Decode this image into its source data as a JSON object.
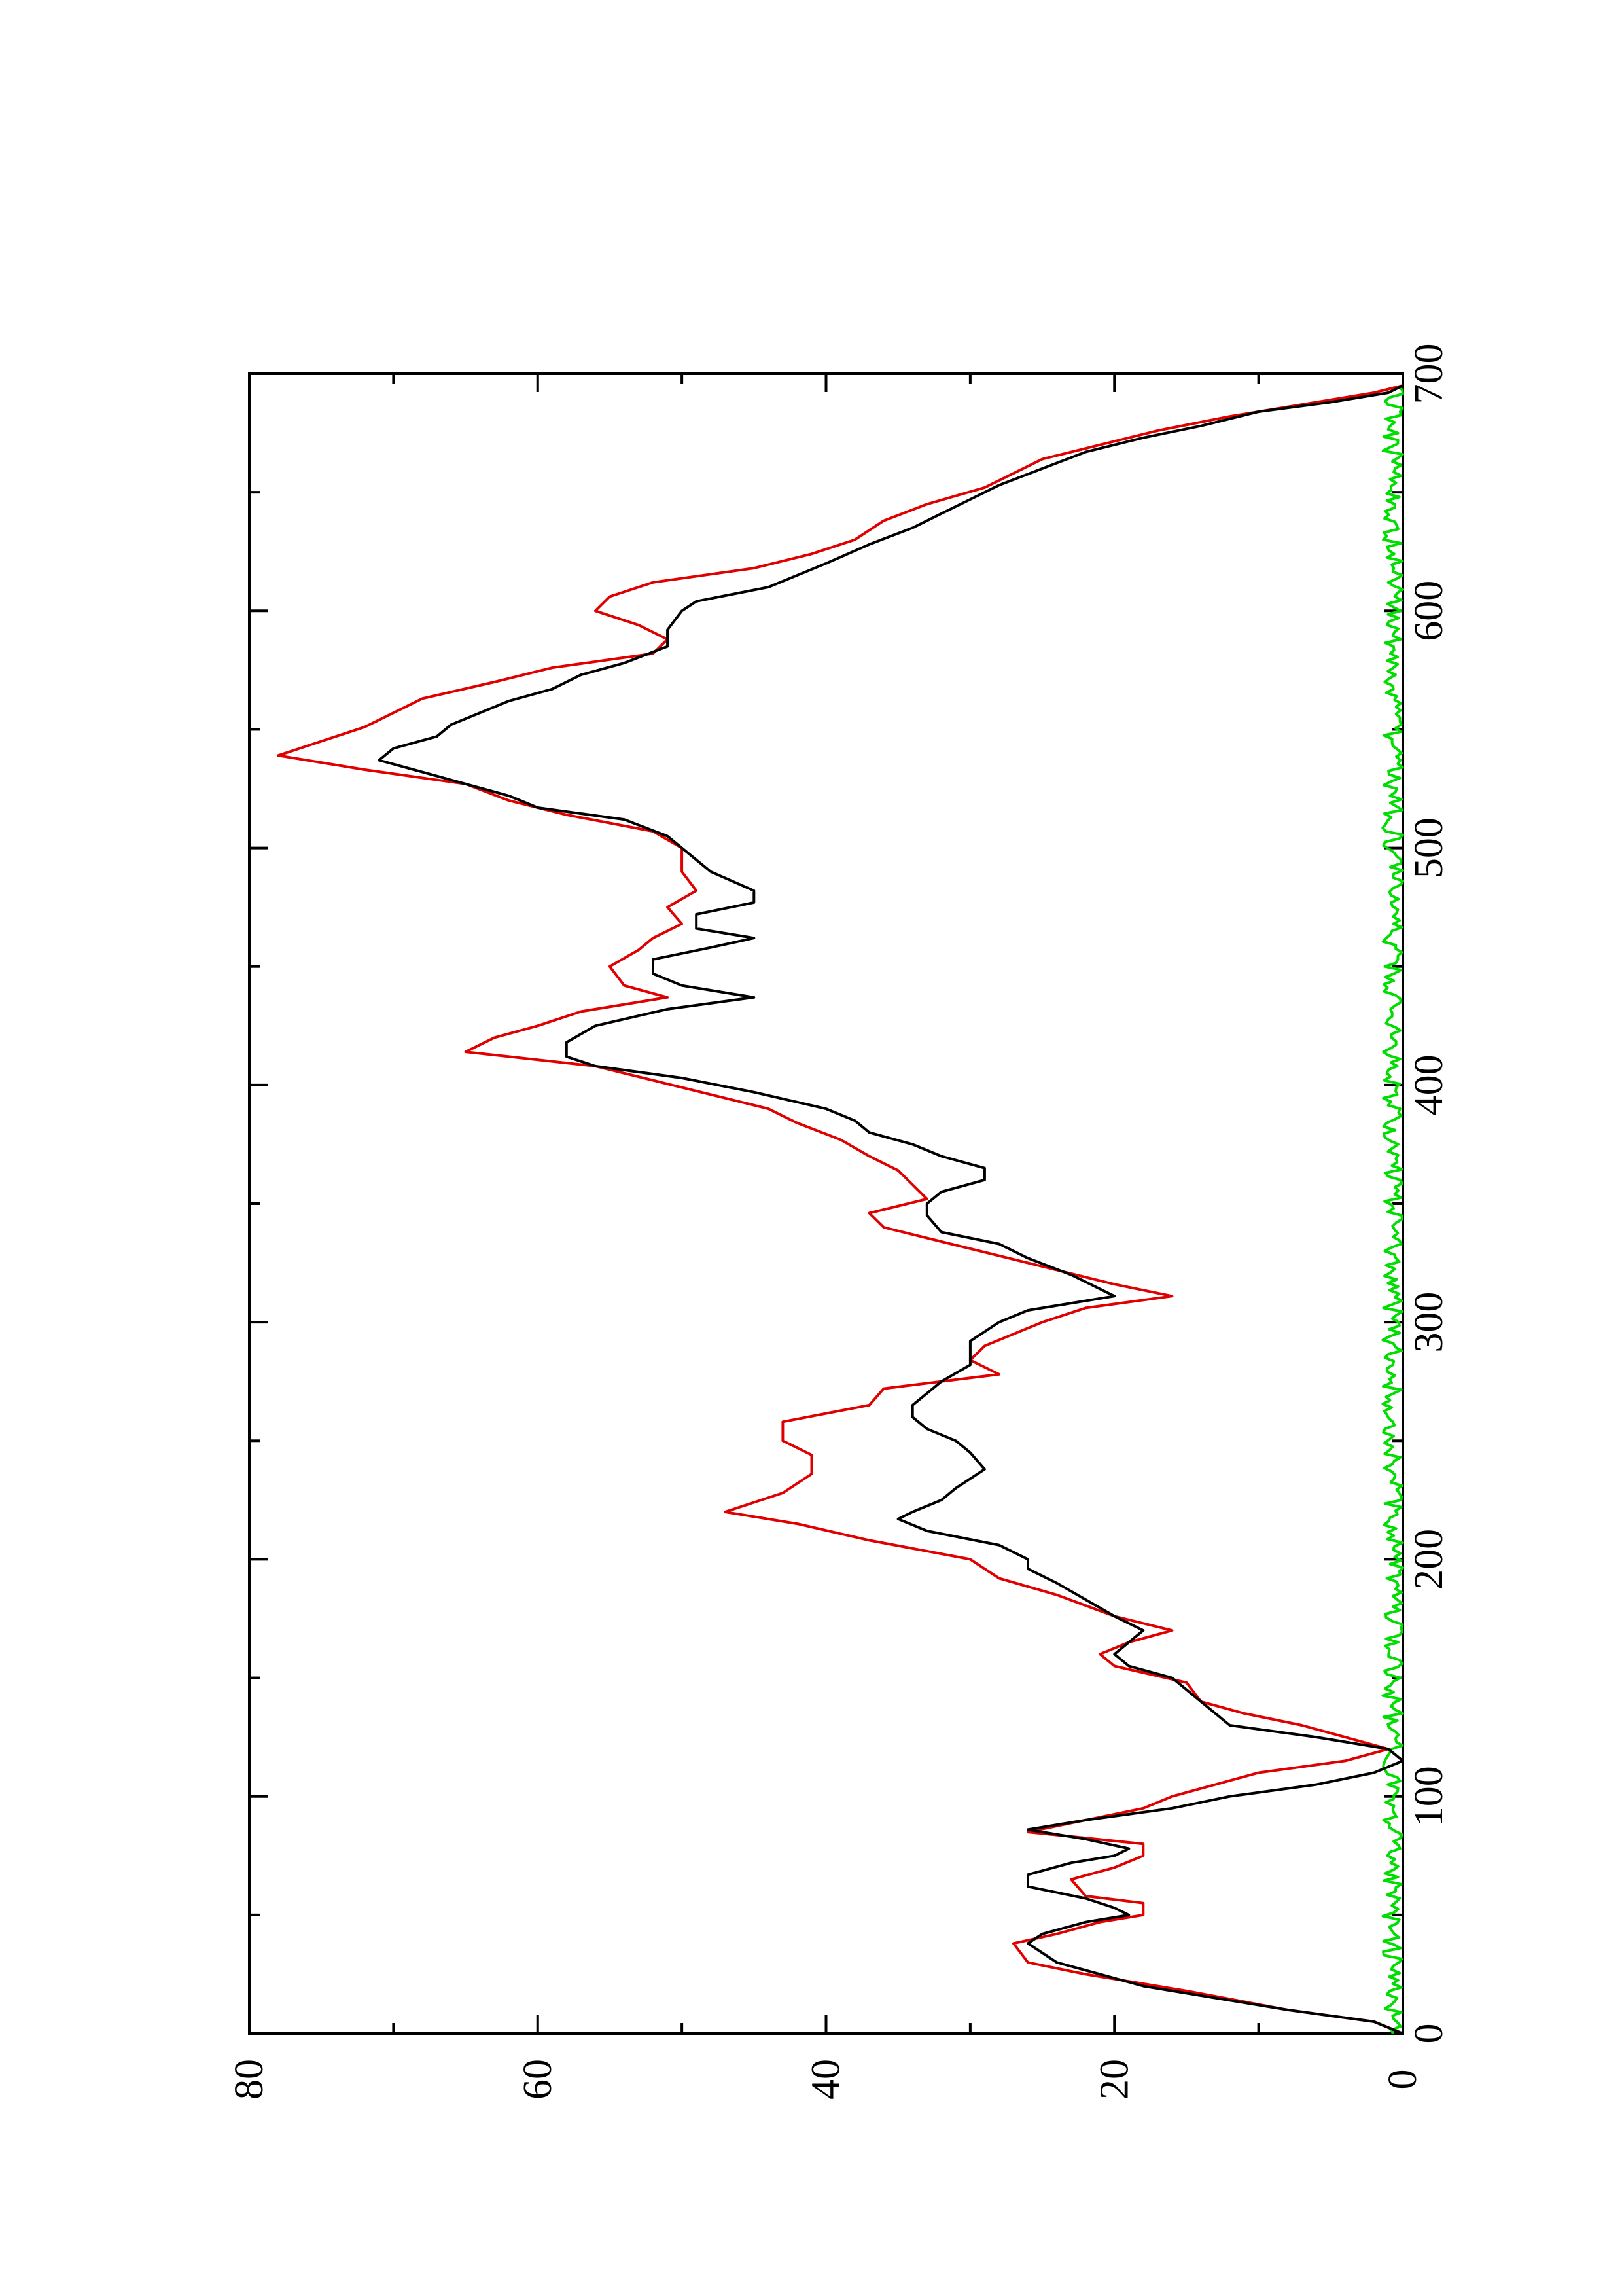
{
  "chart_data": {
    "type": "line",
    "orientation": "rotated 90 degrees counter-clockwise (x axis runs bottom-to-top along the right edge, y axis runs right-to-left along the bottom)",
    "title": "",
    "xlabel": "",
    "ylabel": "",
    "xlim": [
      0,
      700
    ],
    "ylim": [
      0,
      80
    ],
    "x_ticks": [
      0,
      100,
      200,
      300,
      400,
      500,
      600,
      700
    ],
    "y_ticks": [
      0,
      20,
      40,
      60,
      80
    ],
    "x_tick_labels": [
      "0",
      "100",
      "200",
      "300",
      "400",
      "500",
      "600",
      "700"
    ],
    "y_tick_labels": [
      "0",
      "20",
      "40",
      "60",
      "80"
    ],
    "grid": false,
    "legend": "none",
    "series": [
      {
        "color": "#000000",
        "style": "smooth line",
        "points": [
          [
            0,
            0
          ],
          [
            5,
            2
          ],
          [
            10,
            8
          ],
          [
            20,
            18
          ],
          [
            30,
            24
          ],
          [
            38,
            26
          ],
          [
            42,
            25
          ],
          [
            47,
            22
          ],
          [
            50,
            19
          ],
          [
            53,
            20
          ],
          [
            57,
            22
          ],
          [
            62,
            26
          ],
          [
            67,
            26
          ],
          [
            72,
            23
          ],
          [
            75,
            20
          ],
          [
            78,
            19
          ],
          [
            82,
            22
          ],
          [
            86,
            26
          ],
          [
            90,
            22
          ],
          [
            95,
            16
          ],
          [
            100,
            12
          ],
          [
            105,
            6
          ],
          [
            110,
            2
          ],
          [
            115,
            0
          ],
          [
            120,
            1
          ],
          [
            125,
            6
          ],
          [
            130,
            12
          ],
          [
            140,
            14
          ],
          [
            150,
            16
          ],
          [
            155,
            19
          ],
          [
            160,
            20
          ],
          [
            165,
            19
          ],
          [
            170,
            18
          ],
          [
            176,
            20
          ],
          [
            183,
            22
          ],
          [
            190,
            24
          ],
          [
            196,
            26
          ],
          [
            200,
            26
          ],
          [
            206,
            28
          ],
          [
            212,
            33
          ],
          [
            217,
            35
          ],
          [
            220,
            34
          ],
          [
            225,
            32
          ],
          [
            230,
            31
          ],
          [
            234,
            30
          ],
          [
            238,
            29
          ],
          [
            245,
            30
          ],
          [
            250,
            31
          ],
          [
            255,
            33
          ],
          [
            260,
            34
          ],
          [
            265,
            34
          ],
          [
            270,
            33
          ],
          [
            275,
            32
          ],
          [
            282,
            30
          ],
          [
            287,
            30
          ],
          [
            292,
            30
          ],
          [
            300,
            28
          ],
          [
            305,
            26
          ],
          [
            309,
            22
          ],
          [
            311,
            20
          ],
          [
            314,
            21
          ],
          [
            320,
            23
          ],
          [
            327,
            26
          ],
          [
            333,
            28
          ],
          [
            338,
            32
          ],
          [
            345,
            33
          ],
          [
            350,
            33
          ],
          [
            355,
            32
          ],
          [
            360,
            29
          ],
          [
            365,
            29
          ],
          [
            370,
            32
          ],
          [
            375,
            34
          ],
          [
            380,
            37
          ],
          [
            385,
            38
          ],
          [
            390,
            40
          ],
          [
            397,
            45
          ],
          [
            403,
            50
          ],
          [
            408,
            56
          ],
          [
            412,
            58
          ],
          [
            418,
            58
          ],
          [
            425,
            56
          ],
          [
            432,
            51
          ],
          [
            437,
            45
          ],
          [
            442,
            50
          ],
          [
            447,
            52
          ],
          [
            453,
            52
          ],
          [
            458,
            48
          ],
          [
            462,
            45
          ],
          [
            466,
            49
          ],
          [
            472,
            49
          ],
          [
            477,
            45
          ],
          [
            482,
            45
          ],
          [
            490,
            48
          ],
          [
            500,
            50
          ],
          [
            505,
            51
          ],
          [
            512,
            54
          ],
          [
            517,
            60
          ],
          [
            522,
            62
          ],
          [
            527,
            65
          ],
          [
            532,
            68
          ],
          [
            537,
            71
          ],
          [
            542,
            70
          ],
          [
            547,
            67
          ],
          [
            552,
            66
          ],
          [
            557,
            64
          ],
          [
            562,
            62
          ],
          [
            567,
            59
          ],
          [
            573,
            57
          ],
          [
            578,
            54
          ],
          [
            585,
            51
          ],
          [
            592,
            51
          ],
          [
            600,
            50
          ],
          [
            604,
            49
          ],
          [
            610,
            44
          ],
          [
            620,
            40
          ],
          [
            628,
            37
          ],
          [
            635,
            34
          ],
          [
            641,
            32
          ],
          [
            647,
            30
          ],
          [
            653,
            28
          ],
          [
            660,
            25
          ],
          [
            667,
            22
          ],
          [
            673,
            18
          ],
          [
            678,
            14
          ],
          [
            684,
            10
          ],
          [
            688,
            5
          ],
          [
            692,
            1
          ],
          [
            695,
            0
          ]
        ]
      },
      {
        "color": "#e00000",
        "style": "stepped line",
        "points": [
          [
            0,
            0
          ],
          [
            5,
            2
          ],
          [
            10,
            8
          ],
          [
            18,
            15
          ],
          [
            25,
            22
          ],
          [
            30,
            26
          ],
          [
            38,
            27
          ],
          [
            42,
            24
          ],
          [
            47,
            21
          ],
          [
            50,
            18
          ],
          [
            55,
            18
          ],
          [
            58,
            22
          ],
          [
            65,
            23
          ],
          [
            70,
            20
          ],
          [
            75,
            18
          ],
          [
            80,
            18
          ],
          [
            85,
            26
          ],
          [
            90,
            22
          ],
          [
            95,
            18
          ],
          [
            100,
            16
          ],
          [
            105,
            13
          ],
          [
            110,
            10
          ],
          [
            115,
            4
          ],
          [
            120,
            1
          ],
          [
            125,
            4
          ],
          [
            130,
            7
          ],
          [
            135,
            11
          ],
          [
            140,
            14
          ],
          [
            148,
            15
          ],
          [
            155,
            20
          ],
          [
            160,
            21
          ],
          [
            165,
            19
          ],
          [
            170,
            16
          ],
          [
            176,
            20
          ],
          [
            185,
            24
          ],
          [
            192,
            28
          ],
          [
            200,
            30
          ],
          [
            208,
            37
          ],
          [
            215,
            42
          ],
          [
            220,
            47
          ],
          [
            228,
            43
          ],
          [
            236,
            41
          ],
          [
            244,
            41
          ],
          [
            250,
            43
          ],
          [
            258,
            43
          ],
          [
            265,
            37
          ],
          [
            272,
            36
          ],
          [
            278,
            28
          ],
          [
            284,
            30
          ],
          [
            290,
            29
          ],
          [
            300,
            25
          ],
          [
            306,
            22
          ],
          [
            311,
            16
          ],
          [
            316,
            20
          ],
          [
            322,
            24
          ],
          [
            328,
            28
          ],
          [
            334,
            32
          ],
          [
            340,
            36
          ],
          [
            346,
            37
          ],
          [
            352,
            33
          ],
          [
            358,
            34
          ],
          [
            364,
            35
          ],
          [
            370,
            37
          ],
          [
            377,
            39
          ],
          [
            384,
            42
          ],
          [
            390,
            44
          ],
          [
            396,
            48
          ],
          [
            402,
            52
          ],
          [
            408,
            56
          ],
          [
            414,
            65
          ],
          [
            420,
            63
          ],
          [
            425,
            60
          ],
          [
            431,
            57
          ],
          [
            437,
            51
          ],
          [
            442,
            54
          ],
          [
            450,
            55
          ],
          [
            457,
            53
          ],
          [
            462,
            52
          ],
          [
            468,
            50
          ],
          [
            475,
            51
          ],
          [
            482,
            49
          ],
          [
            490,
            50
          ],
          [
            500,
            50
          ],
          [
            507,
            52
          ],
          [
            514,
            58
          ],
          [
            520,
            62
          ],
          [
            527,
            65
          ],
          [
            533,
            72
          ],
          [
            539,
            78
          ],
          [
            545,
            75
          ],
          [
            551,
            72
          ],
          [
            557,
            70
          ],
          [
            563,
            68
          ],
          [
            570,
            63
          ],
          [
            576,
            59
          ],
          [
            582,
            52
          ],
          [
            588,
            51
          ],
          [
            594,
            53
          ],
          [
            600,
            56
          ],
          [
            606,
            55
          ],
          [
            612,
            52
          ],
          [
            618,
            45
          ],
          [
            624,
            41
          ],
          [
            630,
            38
          ],
          [
            638,
            36
          ],
          [
            645,
            33
          ],
          [
            652,
            29
          ],
          [
            658,
            27
          ],
          [
            664,
            25
          ],
          [
            670,
            21
          ],
          [
            676,
            17
          ],
          [
            682,
            12
          ],
          [
            688,
            6
          ],
          [
            692,
            2
          ],
          [
            695,
            0
          ]
        ]
      },
      {
        "color": "#00dd00",
        "style": "noisy line near zero",
        "noise_amplitude": 1.4,
        "x_range": [
          0,
          695
        ]
      }
    ]
  }
}
